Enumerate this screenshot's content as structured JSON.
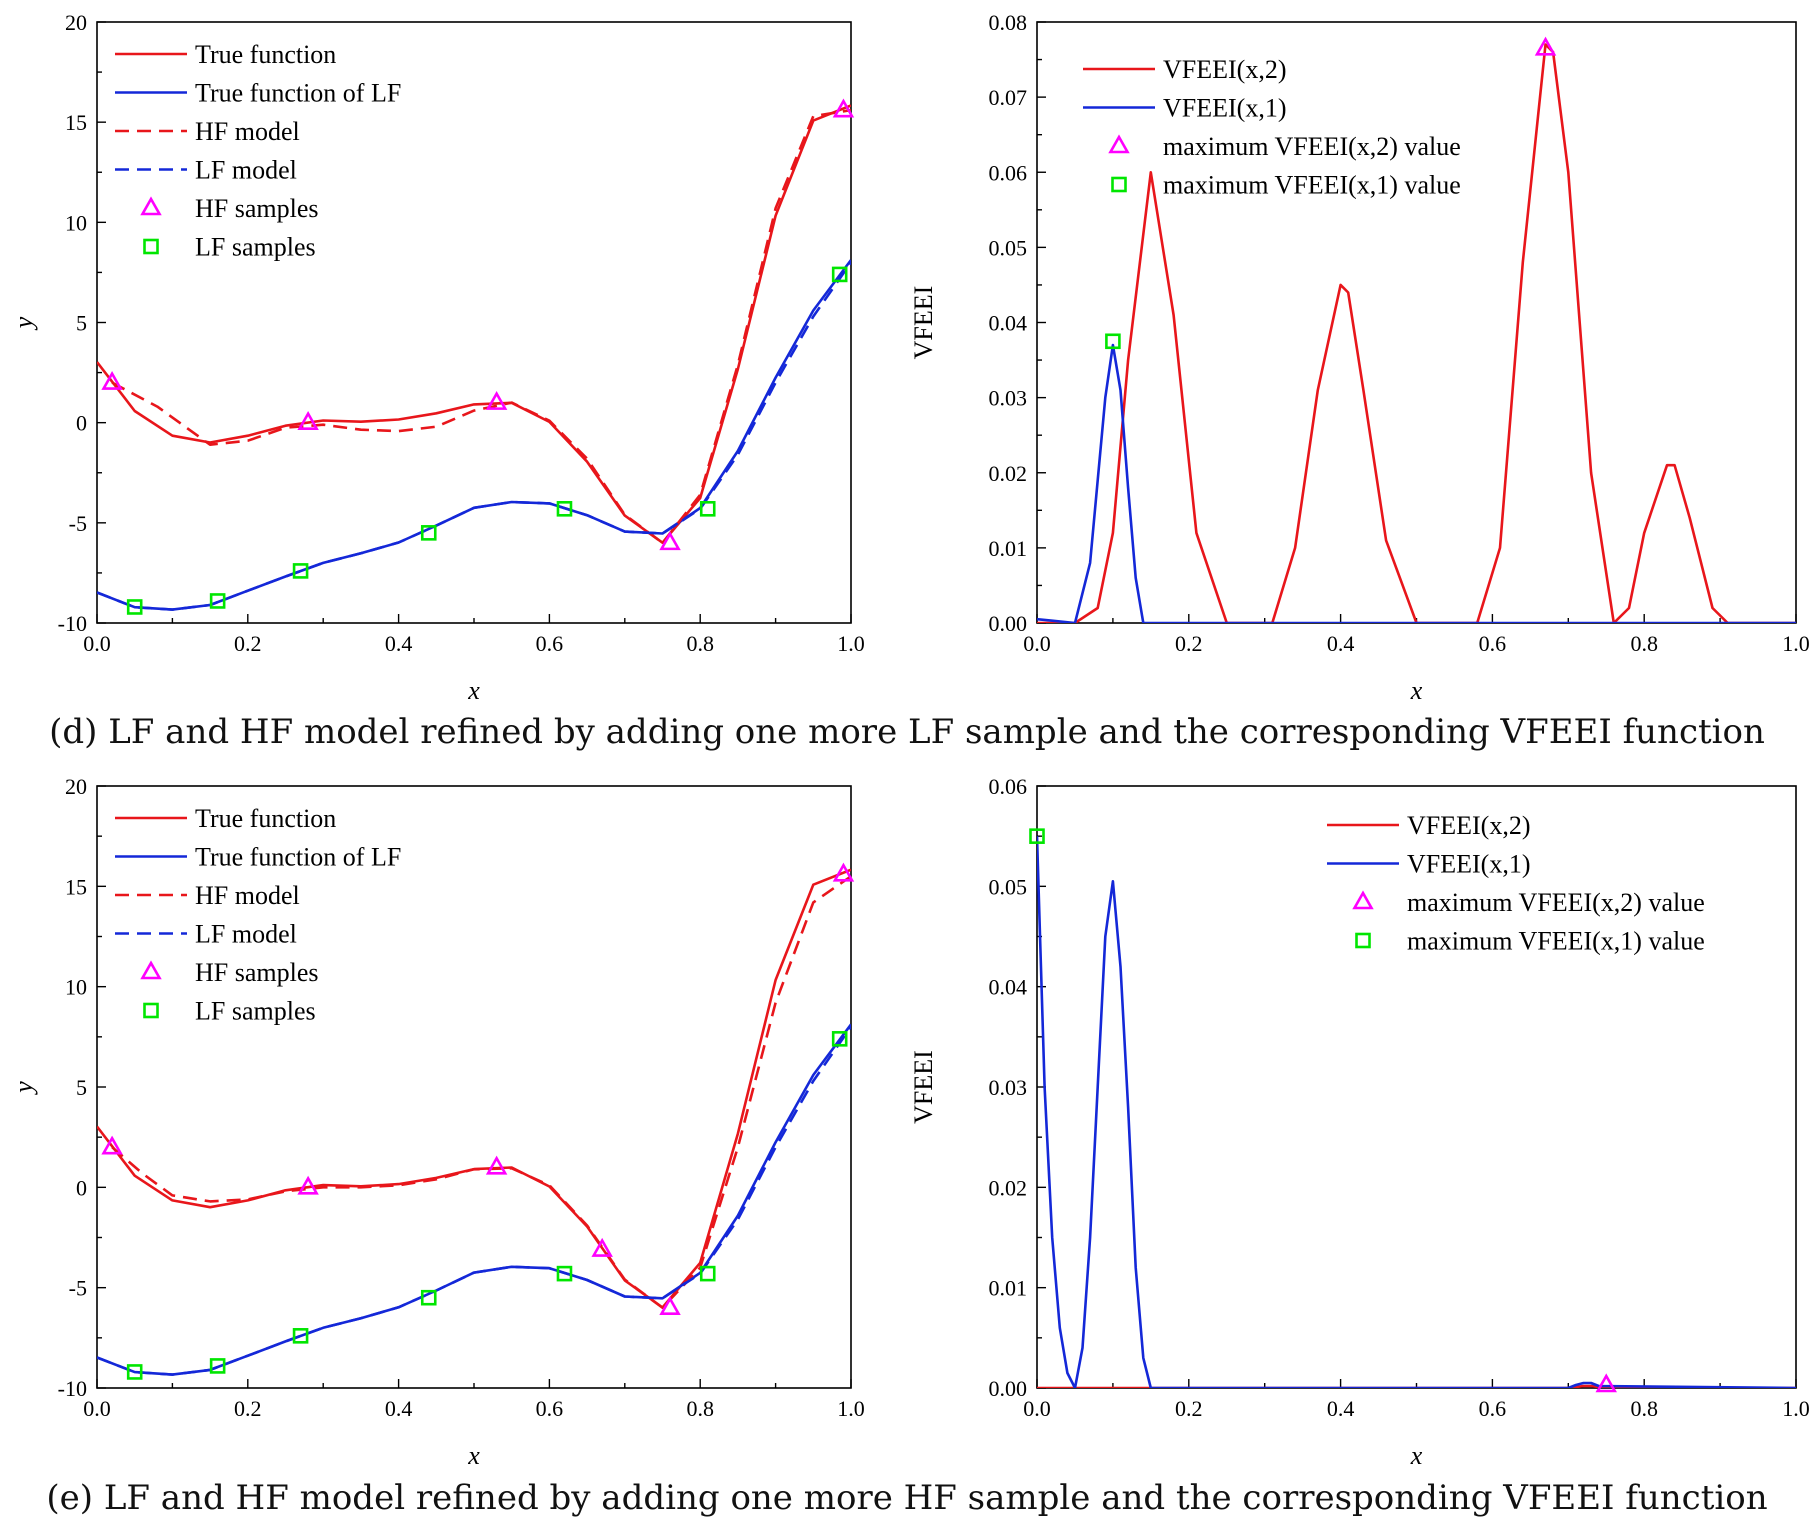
{
  "captions": {
    "d": "(d) LF and HF model refined by adding one more LF sample and the corresponding VFEEI function",
    "e": "(e) LF and HF model refined by adding one more HF sample and the corresponding VFEEI function"
  },
  "colors": {
    "red": "#e8161b",
    "blue": "#1428d8",
    "magenta": "#ff00ff",
    "green": "#00e600"
  },
  "chart_data": [
    {
      "id": "d-left",
      "type": "line",
      "xlabel": "x",
      "ylabel": "y",
      "xlim": [
        0,
        1
      ],
      "ylim": [
        -10,
        20
      ],
      "xticks": [
        "0.0",
        "0.2",
        "0.4",
        "0.6",
        "0.8",
        "1.0"
      ],
      "yticks": [
        "-10",
        "-5",
        "0",
        "5",
        "10",
        "15",
        "20"
      ],
      "legend": {
        "placement": "top-left",
        "entries": [
          {
            "label": "True function",
            "style": "solid-red"
          },
          {
            "label": "True function of LF",
            "style": "solid-blue"
          },
          {
            "label": "HF model",
            "style": "dashed-red"
          },
          {
            "label": "LF model",
            "style": "dashed-blue"
          },
          {
            "label": "HF samples",
            "style": "triangle-magenta"
          },
          {
            "label": "LF samples",
            "style": "square-green"
          }
        ]
      },
      "series": [
        {
          "name": "True function",
          "x": [
            0,
            0.05,
            0.1,
            0.15,
            0.2,
            0.25,
            0.3,
            0.35,
            0.4,
            0.45,
            0.5,
            0.55,
            0.6,
            0.65,
            0.7,
            0.75,
            0.8,
            0.85,
            0.9,
            0.95,
            1.0
          ],
          "y": [
            3.03,
            0.58,
            -0.65,
            -0.99,
            -0.65,
            -0.15,
            0.11,
            0.05,
            0.16,
            0.47,
            0.91,
            0.99,
            0.04,
            -1.95,
            -4.64,
            -5.99,
            -3.76,
            2.68,
            10.33,
            15.08,
            15.83
          ]
        },
        {
          "name": "True function of LF",
          "x": [
            0,
            0.05,
            0.1,
            0.15,
            0.2,
            0.25,
            0.3,
            0.35,
            0.4,
            0.45,
            0.5,
            0.55,
            0.6,
            0.65,
            0.7,
            0.75,
            0.8,
            0.85,
            0.9,
            0.95,
            1.0
          ],
          "y": [
            -8.48,
            -9.21,
            -9.33,
            -9.1,
            -8.39,
            -7.68,
            -7.0,
            -6.52,
            -5.98,
            -5.14,
            -4.25,
            -3.96,
            -4.03,
            -4.62,
            -5.44,
            -5.53,
            -4.26,
            -1.41,
            2.25,
            5.6,
            8.12
          ]
        },
        {
          "name": "HF model",
          "x": [
            0.02,
            0.08,
            0.15,
            0.2,
            0.25,
            0.3,
            0.35,
            0.4,
            0.45,
            0.5,
            0.55,
            0.6,
            0.65,
            0.7,
            0.75,
            0.8,
            0.85,
            0.9,
            0.95,
            1.0
          ],
          "y": [
            2.0,
            0.8,
            -1.1,
            -0.9,
            -0.25,
            -0.1,
            -0.35,
            -0.42,
            -0.2,
            0.6,
            1.0,
            0.1,
            -1.8,
            -4.6,
            -6.0,
            -3.6,
            2.9,
            10.7,
            15.3,
            15.6
          ]
        },
        {
          "name": "LF model",
          "x": [
            0,
            0.05,
            0.1,
            0.15,
            0.2,
            0.25,
            0.3,
            0.35,
            0.4,
            0.45,
            0.5,
            0.55,
            0.6,
            0.65,
            0.7,
            0.75,
            0.8,
            0.85,
            0.9,
            0.95,
            1.0
          ],
          "y": [
            -8.48,
            -9.21,
            -9.33,
            -9.1,
            -8.39,
            -7.68,
            -7.0,
            -6.52,
            -5.98,
            -5.14,
            -4.25,
            -3.96,
            -4.03,
            -4.62,
            -5.44,
            -5.53,
            -4.3,
            -1.6,
            2.0,
            5.3,
            8.0
          ]
        },
        {
          "name": "HF samples",
          "x": [
            0.02,
            0.28,
            0.53,
            0.76,
            0.99
          ],
          "y": [
            2.0,
            0.0,
            1.0,
            -6.0,
            15.6
          ]
        },
        {
          "name": "LF samples",
          "x": [
            0.05,
            0.16,
            0.27,
            0.44,
            0.62,
            0.81,
            0.985
          ],
          "y": [
            -9.2,
            -8.9,
            -7.4,
            -5.5,
            -4.3,
            -4.3,
            7.4
          ]
        }
      ]
    },
    {
      "id": "d-right",
      "type": "line",
      "xlabel": "x",
      "ylabel": "VFEEI",
      "xlim": [
        0,
        1
      ],
      "ylim": [
        0,
        0.08
      ],
      "xticks": [
        "0.0",
        "0.2",
        "0.4",
        "0.6",
        "0.8",
        "1.0"
      ],
      "yticks": [
        "0.00",
        "0.01",
        "0.02",
        "0.03",
        "0.04",
        "0.05",
        "0.06",
        "0.07",
        "0.08"
      ],
      "legend": {
        "placement": "top-left",
        "entries": [
          {
            "label": "VFEEI(x,2)",
            "style": "solid-red"
          },
          {
            "label": "VFEEI(x,1)",
            "style": "solid-blue"
          },
          {
            "label": "maximum VFEEI(x,2) value",
            "style": "triangle-magenta"
          },
          {
            "label": "maximum VFEEI(x,1) value",
            "style": "square-green"
          }
        ]
      },
      "series": [
        {
          "name": "VFEEI(x,2)",
          "x": [
            0,
            0.05,
            0.08,
            0.1,
            0.12,
            0.15,
            0.18,
            0.21,
            0.25,
            0.31,
            0.34,
            0.37,
            0.4,
            0.41,
            0.43,
            0.46,
            0.5,
            0.58,
            0.61,
            0.64,
            0.67,
            0.68,
            0.7,
            0.73,
            0.76,
            0.78,
            0.8,
            0.83,
            0.84,
            0.86,
            0.89,
            0.91,
            1.0
          ],
          "y": [
            0,
            0,
            0.002,
            0.012,
            0.035,
            0.06,
            0.041,
            0.012,
            0,
            0,
            0.01,
            0.031,
            0.045,
            0.044,
            0.031,
            0.011,
            0,
            0,
            0.01,
            0.048,
            0.077,
            0.076,
            0.06,
            0.02,
            0,
            0.002,
            0.012,
            0.021,
            0.021,
            0.014,
            0.002,
            0,
            0
          ]
        },
        {
          "name": "VFEEI(x,1)",
          "x": [
            0,
            0.02,
            0.05,
            0.07,
            0.09,
            0.1,
            0.11,
            0.12,
            0.13,
            0.14,
            0.15,
            1.0
          ],
          "y": [
            0.0005,
            0.0003,
            0,
            0.008,
            0.03,
            0.037,
            0.031,
            0.018,
            0.006,
            0,
            0,
            0
          ]
        },
        {
          "name": "maximum VFEEI(x,2) value",
          "x": [
            0.67
          ],
          "y": [
            0.0765
          ]
        },
        {
          "name": "maximum VFEEI(x,1) value",
          "x": [
            0.1
          ],
          "y": [
            0.0375
          ]
        }
      ]
    },
    {
      "id": "e-left",
      "type": "line",
      "xlabel": "x",
      "ylabel": "y",
      "xlim": [
        0,
        1
      ],
      "ylim": [
        -10,
        20
      ],
      "xticks": [
        "0.0",
        "0.2",
        "0.4",
        "0.6",
        "0.8",
        "1.0"
      ],
      "yticks": [
        "-10",
        "-5",
        "0",
        "5",
        "10",
        "15",
        "20"
      ],
      "legend": {
        "placement": "top-left",
        "entries": [
          {
            "label": "True function",
            "style": "solid-red"
          },
          {
            "label": "True function of LF",
            "style": "solid-blue"
          },
          {
            "label": "HF model",
            "style": "dashed-red"
          },
          {
            "label": "LF model",
            "style": "dashed-blue"
          },
          {
            "label": "HF samples",
            "style": "triangle-magenta"
          },
          {
            "label": "LF samples",
            "style": "square-green"
          }
        ]
      },
      "series": [
        {
          "name": "True function",
          "x": [
            0,
            0.05,
            0.1,
            0.15,
            0.2,
            0.25,
            0.3,
            0.35,
            0.4,
            0.45,
            0.5,
            0.55,
            0.6,
            0.65,
            0.7,
            0.75,
            0.8,
            0.85,
            0.9,
            0.95,
            1.0
          ],
          "y": [
            3.03,
            0.58,
            -0.65,
            -0.99,
            -0.65,
            -0.15,
            0.11,
            0.05,
            0.16,
            0.47,
            0.91,
            0.99,
            0.04,
            -1.95,
            -4.64,
            -5.99,
            -3.76,
            2.68,
            10.33,
            15.08,
            15.83
          ]
        },
        {
          "name": "True function of LF",
          "x": [
            0,
            0.05,
            0.1,
            0.15,
            0.2,
            0.25,
            0.3,
            0.35,
            0.4,
            0.45,
            0.5,
            0.55,
            0.6,
            0.65,
            0.7,
            0.75,
            0.8,
            0.85,
            0.9,
            0.95,
            1.0
          ],
          "y": [
            -8.48,
            -9.21,
            -9.33,
            -9.1,
            -8.39,
            -7.68,
            -7.0,
            -6.52,
            -5.98,
            -5.14,
            -4.25,
            -3.96,
            -4.03,
            -4.62,
            -5.44,
            -5.53,
            -4.26,
            -1.41,
            2.25,
            5.6,
            8.12
          ]
        },
        {
          "name": "HF model",
          "x": [
            0.02,
            0.06,
            0.1,
            0.15,
            0.2,
            0.25,
            0.3,
            0.35,
            0.4,
            0.45,
            0.5,
            0.55,
            0.6,
            0.65,
            0.7,
            0.75,
            0.8,
            0.85,
            0.9,
            0.95,
            1.0
          ],
          "y": [
            2.0,
            0.7,
            -0.4,
            -0.7,
            -0.6,
            -0.2,
            0.0,
            0.0,
            0.1,
            0.4,
            0.9,
            0.95,
            0.1,
            -1.9,
            -4.6,
            -6.0,
            -4.0,
            2.0,
            9.2,
            14.2,
            15.5
          ]
        },
        {
          "name": "LF model",
          "x": [
            0,
            0.05,
            0.1,
            0.15,
            0.2,
            0.25,
            0.3,
            0.35,
            0.4,
            0.45,
            0.5,
            0.55,
            0.6,
            0.65,
            0.7,
            0.75,
            0.8,
            0.85,
            0.9,
            0.95,
            1.0
          ],
          "y": [
            -8.48,
            -9.21,
            -9.33,
            -9.1,
            -8.39,
            -7.68,
            -7.0,
            -6.52,
            -5.98,
            -5.14,
            -4.25,
            -3.96,
            -4.03,
            -4.62,
            -5.44,
            -5.53,
            -4.3,
            -1.6,
            2.0,
            5.3,
            8.0
          ]
        },
        {
          "name": "HF samples",
          "x": [
            0.02,
            0.28,
            0.53,
            0.67,
            0.76,
            0.99
          ],
          "y": [
            2.0,
            0.0,
            1.0,
            -3.1,
            -6.0,
            15.6
          ]
        },
        {
          "name": "LF samples",
          "x": [
            0.05,
            0.16,
            0.27,
            0.44,
            0.62,
            0.81,
            0.985
          ],
          "y": [
            -9.2,
            -8.9,
            -7.4,
            -5.5,
            -4.3,
            -4.3,
            7.4
          ]
        }
      ]
    },
    {
      "id": "e-right",
      "type": "line",
      "xlabel": "x",
      "ylabel": "VFEEI",
      "xlim": [
        0,
        1
      ],
      "ylim": [
        0,
        0.06
      ],
      "xticks": [
        "0.0",
        "0.2",
        "0.4",
        "0.6",
        "0.8",
        "1.0"
      ],
      "yticks": [
        "0.00",
        "0.01",
        "0.02",
        "0.03",
        "0.04",
        "0.05",
        "0.06"
      ],
      "legend": {
        "placement": "top-right",
        "entries": [
          {
            "label": "VFEEI(x,2)",
            "style": "solid-red"
          },
          {
            "label": "VFEEI(x,1)",
            "style": "solid-blue"
          },
          {
            "label": "maximum VFEEI(x,2) value",
            "style": "triangle-magenta"
          },
          {
            "label": "maximum VFEEI(x,1) value",
            "style": "square-green"
          }
        ]
      },
      "series": [
        {
          "name": "VFEEI(x,2)",
          "x": [
            0,
            0.05,
            0.1,
            0.15,
            0.2,
            0.7,
            0.71,
            0.72,
            0.73,
            0.74,
            0.75,
            1.0
          ],
          "y": [
            0,
            0,
            0,
            0,
            0,
            0,
            0.0001,
            0.0002,
            0.0002,
            0.0001,
            0,
            0
          ]
        },
        {
          "name": "VFEEI(x,1)",
          "x": [
            0,
            0.01,
            0.02,
            0.03,
            0.04,
            0.05,
            0.06,
            0.07,
            0.08,
            0.09,
            0.1,
            0.11,
            0.12,
            0.13,
            0.14,
            0.15,
            0.7,
            0.71,
            0.72,
            0.73,
            0.74,
            1.0
          ],
          "y": [
            0.055,
            0.03,
            0.015,
            0.006,
            0.0015,
            0,
            0.004,
            0.015,
            0.03,
            0.045,
            0.0505,
            0.042,
            0.028,
            0.012,
            0.003,
            0,
            0,
            0.0003,
            0.0005,
            0.0005,
            0.0002,
            0
          ]
        },
        {
          "name": "maximum VFEEI(x,2) value",
          "x": [
            0.75
          ],
          "y": [
            0.0003
          ]
        },
        {
          "name": "maximum VFEEI(x,1) value",
          "x": [
            0.0
          ],
          "y": [
            0.055
          ]
        }
      ]
    }
  ]
}
